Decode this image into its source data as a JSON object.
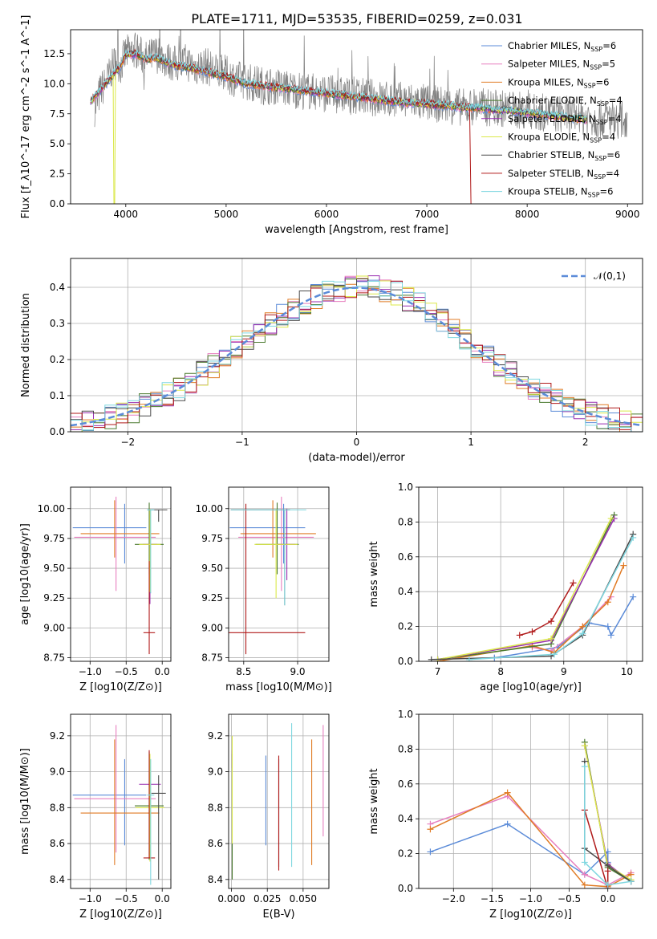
{
  "figure": {
    "title": "PLATE=1711, MJD=53535, FIBERID=0259, z=0.031"
  },
  "series_styles": [
    {
      "name": "Chabrier MILES",
      "nssp": "6",
      "color": "#5b8bd8"
    },
    {
      "name": "Salpeter MILES",
      "nssp": "5",
      "color": "#e77fbf"
    },
    {
      "name": "Kroupa MILES",
      "nssp": "6",
      "color": "#e07b25"
    },
    {
      "name": "Chabrier ELODIE",
      "nssp": "4",
      "color": "#4a7a2e"
    },
    {
      "name": "Salpeter ELODIE",
      "nssp": "4",
      "color": "#9a2fb1"
    },
    {
      "name": "Kroupa ELODIE",
      "nssp": "4",
      "color": "#dbe84a"
    },
    {
      "name": "Chabrier STELIB",
      "nssp": "6",
      "color": "#4a4a4a"
    },
    {
      "name": "Salpeter STELIB",
      "nssp": "4",
      "color": "#b01a1a"
    },
    {
      "name": "Kroupa STELIB",
      "nssp": "6",
      "color": "#7fd7e0"
    }
  ],
  "chart_data": [
    {
      "type": "line",
      "panel": "spectrum",
      "xlabel": "wavelength [Angstrom, rest frame]",
      "ylabel": "Flux [f_λ10^-17 erg cm^-2 s^-1 A^-1]",
      "xlim": [
        3450,
        9150
      ],
      "ylim": [
        0,
        14.5
      ],
      "xticks": [
        4000,
        5000,
        6000,
        7000,
        8000,
        9000
      ],
      "yticks": [
        0.0,
        2.5,
        5.0,
        7.5,
        10.0,
        12.5
      ],
      "data_color": "#808080",
      "data_x": [
        3700,
        3750,
        3800,
        3850,
        3900,
        3950,
        4000,
        4100,
        4200,
        4300,
        4400,
        4500,
        4600,
        4700,
        4800,
        4900,
        5000,
        5100,
        5200,
        5300,
        5400,
        5500,
        5600,
        5700,
        5800,
        5900,
        6000,
        6100,
        6200,
        6300,
        6400,
        6500,
        6600,
        6700,
        6800,
        6900,
        7000,
        7100,
        7200,
        7300,
        7400,
        7500,
        7600,
        7700,
        7800,
        7900,
        8000,
        8100,
        8200,
        8300,
        8400,
        8500,
        8600,
        8700,
        8800,
        8900,
        9000
      ],
      "data_y": [
        8.0,
        9.5,
        10.0,
        11.0,
        12.0,
        11.5,
        12.5,
        12.8,
        12.0,
        12.5,
        12.0,
        11.6,
        11.8,
        11.4,
        11.5,
        11.0,
        10.8,
        10.4,
        10.2,
        10.0,
        9.8,
        9.8,
        9.6,
        9.5,
        9.4,
        9.3,
        9.2,
        9.1,
        9.0,
        9.0,
        8.9,
        8.8,
        8.7,
        8.6,
        8.6,
        8.5,
        8.4,
        8.3,
        8.2,
        8.1,
        8.0,
        8.2,
        8.0,
        8.0,
        7.9,
        7.8,
        7.7,
        7.6,
        7.6,
        7.5,
        7.4,
        7.3,
        7.2,
        7.0,
        7.2,
        7.0,
        7.1
      ],
      "model_x": [
        3650,
        3700,
        3750,
        3800,
        3850,
        3900,
        3950,
        4000,
        4100,
        4200,
        4300,
        4400,
        4500,
        4600,
        4700,
        4800,
        4900,
        5000,
        5100,
        5200,
        5300,
        5400,
        5500,
        5600,
        5700,
        5800,
        5900,
        6000,
        6100,
        6200,
        6300,
        6400,
        6500,
        6600,
        6700,
        6800,
        6900,
        7000,
        7100,
        7200,
        7300,
        7400,
        7500,
        7600,
        7700,
        7800,
        7900,
        8000,
        8100,
        8200,
        8300,
        8400,
        8500,
        8600
      ],
      "model_y": [
        8.5,
        9.0,
        9.5,
        10.0,
        10.5,
        11.0,
        11.5,
        12.4,
        12.5,
        12.0,
        12.2,
        11.8,
        11.5,
        11.4,
        11.2,
        11.0,
        10.8,
        10.6,
        10.3,
        10.0,
        9.9,
        9.8,
        9.7,
        9.6,
        9.5,
        9.4,
        9.3,
        9.2,
        9.1,
        9.0,
        8.9,
        8.8,
        8.7,
        8.6,
        8.5,
        8.4,
        8.4,
        8.3,
        8.2,
        8.2,
        8.1,
        8.0,
        8.0,
        7.9,
        7.8,
        7.8,
        7.7,
        7.6,
        7.5,
        7.4,
        7.3,
        7.2,
        7.1,
        7.0
      ]
    },
    {
      "type": "line",
      "panel": "residual_histogram",
      "xlabel": "(data-model)/error",
      "ylabel": "Normed distribution",
      "xlim": [
        -2.5,
        2.5
      ],
      "ylim": [
        0,
        0.48
      ],
      "xticks": [
        -2,
        -1,
        0,
        1,
        2
      ],
      "yticks": [
        0.0,
        0.1,
        0.2,
        0.3,
        0.4
      ],
      "legend": {
        "label": "𝒩(0,1)",
        "placement": "top-right"
      },
      "bin_width": 0.1,
      "bin_start": -2.5
    },
    {
      "type": "scatter",
      "panel": "age_vs_Z",
      "xlabel": "Z [log10(Z/Z⊙)]",
      "ylabel": "age [log10(age/yr)]",
      "xlim": [
        -1.27,
        0.12
      ],
      "ylim": [
        8.72,
        10.18
      ],
      "xticks": [
        -1.0,
        -0.5,
        0.0
      ],
      "yticks": [
        8.75,
        9.0,
        9.25,
        9.5,
        9.75,
        10.0
      ],
      "points": [
        {
          "s": 0,
          "x": -0.52,
          "xerr": [
            0.72,
            0.3
          ],
          "y": 9.84,
          "yerr": [
            0.3,
            0.2
          ]
        },
        {
          "s": 1,
          "x": -0.64,
          "xerr": [
            0.58,
            0.55
          ],
          "y": 9.76,
          "yerr": [
            0.45,
            0.34
          ]
        },
        {
          "s": 2,
          "x": -0.66,
          "xerr": [
            0.47,
            0.62
          ],
          "y": 9.79,
          "yerr": [
            0.2,
            0.28
          ]
        },
        {
          "s": 3,
          "x": -0.18,
          "xerr": [
            0.2,
            0.2
          ],
          "y": 9.7,
          "yerr": [
            0.25,
            0.35
          ]
        },
        {
          "s": 4,
          "x": -0.17,
          "xerr": [
            0.1,
            0.1
          ],
          "y": 9.7,
          "yerr": [
            0.5,
            0.3
          ]
        },
        {
          "s": 5,
          "x": -0.17,
          "xerr": [
            0.15,
            0.15
          ],
          "y": 9.7,
          "yerr": [
            0.4,
            0.3
          ]
        },
        {
          "s": 6,
          "x": -0.05,
          "xerr": [
            0.15,
            0.12
          ],
          "y": 9.99,
          "yerr": [
            0.1,
            0.0
          ]
        },
        {
          "s": 7,
          "x": -0.18,
          "xerr": [
            0.08,
            0.08
          ],
          "y": 8.96,
          "yerr": [
            0.18,
            0.6
          ]
        },
        {
          "s": 8,
          "x": -0.16,
          "xerr": [
            0.05,
            0.05
          ],
          "y": 9.99,
          "yerr": [
            0.7,
            0.0
          ]
        }
      ]
    },
    {
      "type": "scatter",
      "panel": "age_vs_mass",
      "xlabel": "mass [log10(M/M⊙)]",
      "ylabel": "",
      "xlim": [
        8.36,
        9.29
      ],
      "ylim": [
        8.72,
        10.18
      ],
      "xticks": [
        8.5,
        9.0
      ],
      "yticks": [
        8.75,
        9.0,
        9.25,
        9.5,
        9.75,
        10.0
      ],
      "points": [
        {
          "s": 0,
          "x": 8.87,
          "xerr": [
            0.5,
            0.2
          ],
          "y": 9.84,
          "yerr": [
            0.3,
            0.2
          ]
        },
        {
          "s": 1,
          "x": 8.85,
          "xerr": [
            0.4,
            0.3
          ],
          "y": 9.76,
          "yerr": [
            0.45,
            0.34
          ]
        },
        {
          "s": 2,
          "x": 8.77,
          "xerr": [
            0.3,
            0.4
          ],
          "y": 9.79,
          "yerr": [
            0.2,
            0.28
          ]
        },
        {
          "s": 3,
          "x": 8.81,
          "xerr": [
            0.2,
            0.2
          ],
          "y": 9.7,
          "yerr": [
            0.25,
            0.35
          ]
        },
        {
          "s": 4,
          "x": 8.9,
          "xerr": [
            0.1,
            0.08
          ],
          "y": 9.7,
          "yerr": [
            0.3,
            0.3
          ]
        },
        {
          "s": 5,
          "x": 8.8,
          "xerr": [
            0.2,
            0.2
          ],
          "y": 9.7,
          "yerr": [
            0.45,
            0.3
          ]
        },
        {
          "s": 6,
          "x": 8.88,
          "xerr": [
            0.5,
            0.05
          ],
          "y": 9.99,
          "yerr": [
            0.8,
            0.0
          ]
        },
        {
          "s": 7,
          "x": 8.52,
          "xerr": [
            0.25,
            0.55
          ],
          "y": 8.96,
          "yerr": [
            0.18,
            1.08
          ]
        },
        {
          "s": 8,
          "x": 8.88,
          "xerr": [
            0.5,
            0.2
          ],
          "y": 9.99,
          "yerr": [
            0.8,
            0.0
          ]
        }
      ]
    },
    {
      "type": "line",
      "panel": "mass_weight_vs_age",
      "xlabel": "age [log10(age/yr)]",
      "ylabel": "mass weight",
      "xlim": [
        6.7,
        10.25
      ],
      "ylim": [
        0,
        1.0
      ],
      "xticks": [
        7,
        8,
        9,
        10
      ],
      "yticks": [
        0.0,
        0.2,
        0.4,
        0.6,
        0.8,
        1.0
      ],
      "series": [
        {
          "s": 0,
          "x": [
            7.9,
            8.9,
            9.4,
            9.7,
            9.75,
            10.1
          ],
          "y": [
            0.02,
            0.08,
            0.22,
            0.2,
            0.15,
            0.37
          ]
        },
        {
          "s": 1,
          "x": [
            8.5,
            8.8,
            9.3,
            9.75
          ],
          "y": [
            0.08,
            0.06,
            0.2,
            0.37
          ]
        },
        {
          "s": 2,
          "x": [
            7.0,
            8.5,
            8.85,
            9.3,
            9.7,
            9.95
          ],
          "y": [
            0.0,
            0.09,
            0.05,
            0.2,
            0.34,
            0.55
          ]
        },
        {
          "s": 3,
          "x": [
            7.0,
            8.8,
            9.8
          ],
          "y": [
            0.01,
            0.1,
            0.84
          ]
        },
        {
          "s": 4,
          "x": [
            7.0,
            8.8,
            9.8
          ],
          "y": [
            0.01,
            0.12,
            0.82
          ]
        },
        {
          "s": 5,
          "x": [
            7.0,
            8.8,
            9.75
          ],
          "y": [
            0.01,
            0.13,
            0.82
          ]
        },
        {
          "s": 6,
          "x": [
            6.9,
            8.8,
            9.3,
            10.1
          ],
          "y": [
            0.01,
            0.03,
            0.15,
            0.73
          ]
        },
        {
          "s": 7,
          "x": [
            8.3,
            8.5,
            8.8,
            9.15
          ],
          "y": [
            0.15,
            0.17,
            0.23,
            0.45
          ]
        },
        {
          "s": 8,
          "x": [
            7.5,
            8.85,
            9.3,
            10.1
          ],
          "y": [
            0.01,
            0.04,
            0.16,
            0.71
          ]
        }
      ]
    },
    {
      "type": "scatter",
      "panel": "mass_vs_Z",
      "xlabel": "Z [log10(Z/Z⊙)]",
      "ylabel": "mass [log10(M/M⊙)]",
      "xlim": [
        -1.27,
        0.12
      ],
      "ylim": [
        8.35,
        9.32
      ],
      "xticks": [
        -1.0,
        -0.5,
        0.0
      ],
      "yticks": [
        8.4,
        8.6,
        8.8,
        9.0,
        9.2
      ],
      "points": [
        {
          "s": 0,
          "x": -0.52,
          "xerr": [
            0.72,
            0.3
          ],
          "y": 8.87,
          "yerr": [
            0.28,
            0.2
          ]
        },
        {
          "s": 1,
          "x": -0.64,
          "xerr": [
            0.58,
            0.55
          ],
          "y": 8.85,
          "yerr": [
            0.3,
            0.41
          ]
        },
        {
          "s": 2,
          "x": -0.66,
          "xerr": [
            0.47,
            0.62
          ],
          "y": 8.77,
          "yerr": [
            0.29,
            0.41
          ]
        },
        {
          "s": 3,
          "x": -0.18,
          "xerr": [
            0.2,
            0.2
          ],
          "y": 8.81,
          "yerr": [
            0.3,
            0.3
          ]
        },
        {
          "s": 4,
          "x": -0.17,
          "xerr": [
            0.15,
            0.15
          ],
          "y": 8.93,
          "yerr": [
            0.1,
            0.1
          ]
        },
        {
          "s": 5,
          "x": -0.17,
          "xerr": [
            0.2,
            0.2
          ],
          "y": 8.8,
          "yerr": [
            0.3,
            0.3
          ]
        },
        {
          "s": 6,
          "x": -0.05,
          "xerr": [
            0.1,
            0.1
          ],
          "y": 8.88,
          "yerr": [
            0.48,
            0.1
          ]
        },
        {
          "s": 7,
          "x": -0.18,
          "xerr": [
            0.08,
            0.08
          ],
          "y": 8.52,
          "yerr": [
            0.0,
            0.6
          ]
        },
        {
          "s": 8,
          "x": -0.16,
          "xerr": [
            0.05,
            0.05
          ],
          "y": 8.87,
          "yerr": [
            0.5,
            0.2
          ]
        }
      ]
    },
    {
      "type": "scatter",
      "panel": "mass_vs_EBV",
      "xlabel": "E(B-V)",
      "ylabel": "",
      "xlim": [
        -0.002,
        0.068
      ],
      "ylim": [
        8.35,
        9.32
      ],
      "xticks": [
        0.0,
        0.025,
        0.05
      ],
      "yticks": [
        8.4,
        8.6,
        8.8,
        9.0,
        9.2
      ],
      "points": [
        {
          "s": 0,
          "x": 0.024,
          "y": 8.84,
          "yerr": [
            0.25,
            0.25
          ]
        },
        {
          "s": 1,
          "x": 0.064,
          "y": 8.95,
          "yerr": [
            0.31,
            0.31
          ]
        },
        {
          "s": 2,
          "x": 0.056,
          "y": 8.83,
          "yerr": [
            0.35,
            0.35
          ]
        },
        {
          "s": 3,
          "x": 0.0005,
          "y": 8.75,
          "yerr": [
            0.35,
            0.35
          ]
        },
        {
          "s": 4,
          "x": 0.0005,
          "y": 9.07,
          "yerr": [
            0.05,
            0.05
          ]
        },
        {
          "s": 5,
          "x": 0.0005,
          "y": 8.9,
          "yerr": [
            0.3,
            0.3
          ]
        },
        {
          "s": 6,
          "x": 0.033,
          "y": 8.77,
          "yerr": [
            0.3,
            0.3
          ]
        },
        {
          "s": 7,
          "x": 0.033,
          "y": 8.77,
          "yerr": [
            0.32,
            0.32
          ]
        },
        {
          "s": 8,
          "x": 0.042,
          "y": 8.87,
          "yerr": [
            0.4,
            0.4
          ]
        }
      ]
    },
    {
      "type": "line",
      "panel": "mass_weight_vs_Z",
      "xlabel": "Z [log10(Z/Z⊙)]",
      "ylabel": "mass weight",
      "xlim": [
        -2.45,
        0.45
      ],
      "ylim": [
        0,
        1.0
      ],
      "xticks": [
        -2.0,
        -1.5,
        -1.0,
        -0.5,
        0.0
      ],
      "yticks": [
        0.0,
        0.2,
        0.4,
        0.6,
        0.8,
        1.0
      ],
      "series": [
        {
          "s": 0,
          "x": [
            -2.3,
            -1.3,
            -0.3,
            0.0,
            0.0
          ],
          "y": [
            0.21,
            0.37,
            0.08,
            0.21,
            0.15
          ]
        },
        {
          "s": 1,
          "x": [
            -2.3,
            -1.3,
            -0.3,
            0.0,
            0.3
          ],
          "y": [
            0.37,
            0.53,
            0.08,
            0.02,
            0.09
          ]
        },
        {
          "s": 2,
          "x": [
            -2.3,
            -1.3,
            -0.3,
            0.0,
            0.3
          ],
          "y": [
            0.34,
            0.55,
            0.02,
            0.01,
            0.08
          ]
        },
        {
          "s": 3,
          "x": [
            -0.3,
            0.0,
            0.3
          ],
          "y": [
            0.84,
            0.12,
            0.04
          ]
        },
        {
          "s": 4,
          "x": [
            -0.3,
            0.0,
            0.3
          ],
          "y": [
            0.82,
            0.14,
            0.04
          ]
        },
        {
          "s": 5,
          "x": [
            -0.3,
            0.0,
            0.3
          ],
          "y": [
            0.82,
            0.13,
            0.05
          ]
        },
        {
          "s": 6,
          "x": [
            -0.3,
            -0.3,
            0.0,
            0.3
          ],
          "y": [
            0.73,
            0.23,
            0.13,
            0.04
          ]
        },
        {
          "s": 7,
          "x": [
            -0.3,
            0.0,
            0.0
          ],
          "y": [
            0.45,
            0.0,
            0.1
          ]
        },
        {
          "s": 8,
          "x": [
            -0.3,
            -0.3,
            0.0,
            0.3
          ],
          "y": [
            0.7,
            0.15,
            0.02,
            0.04
          ]
        }
      ]
    }
  ]
}
